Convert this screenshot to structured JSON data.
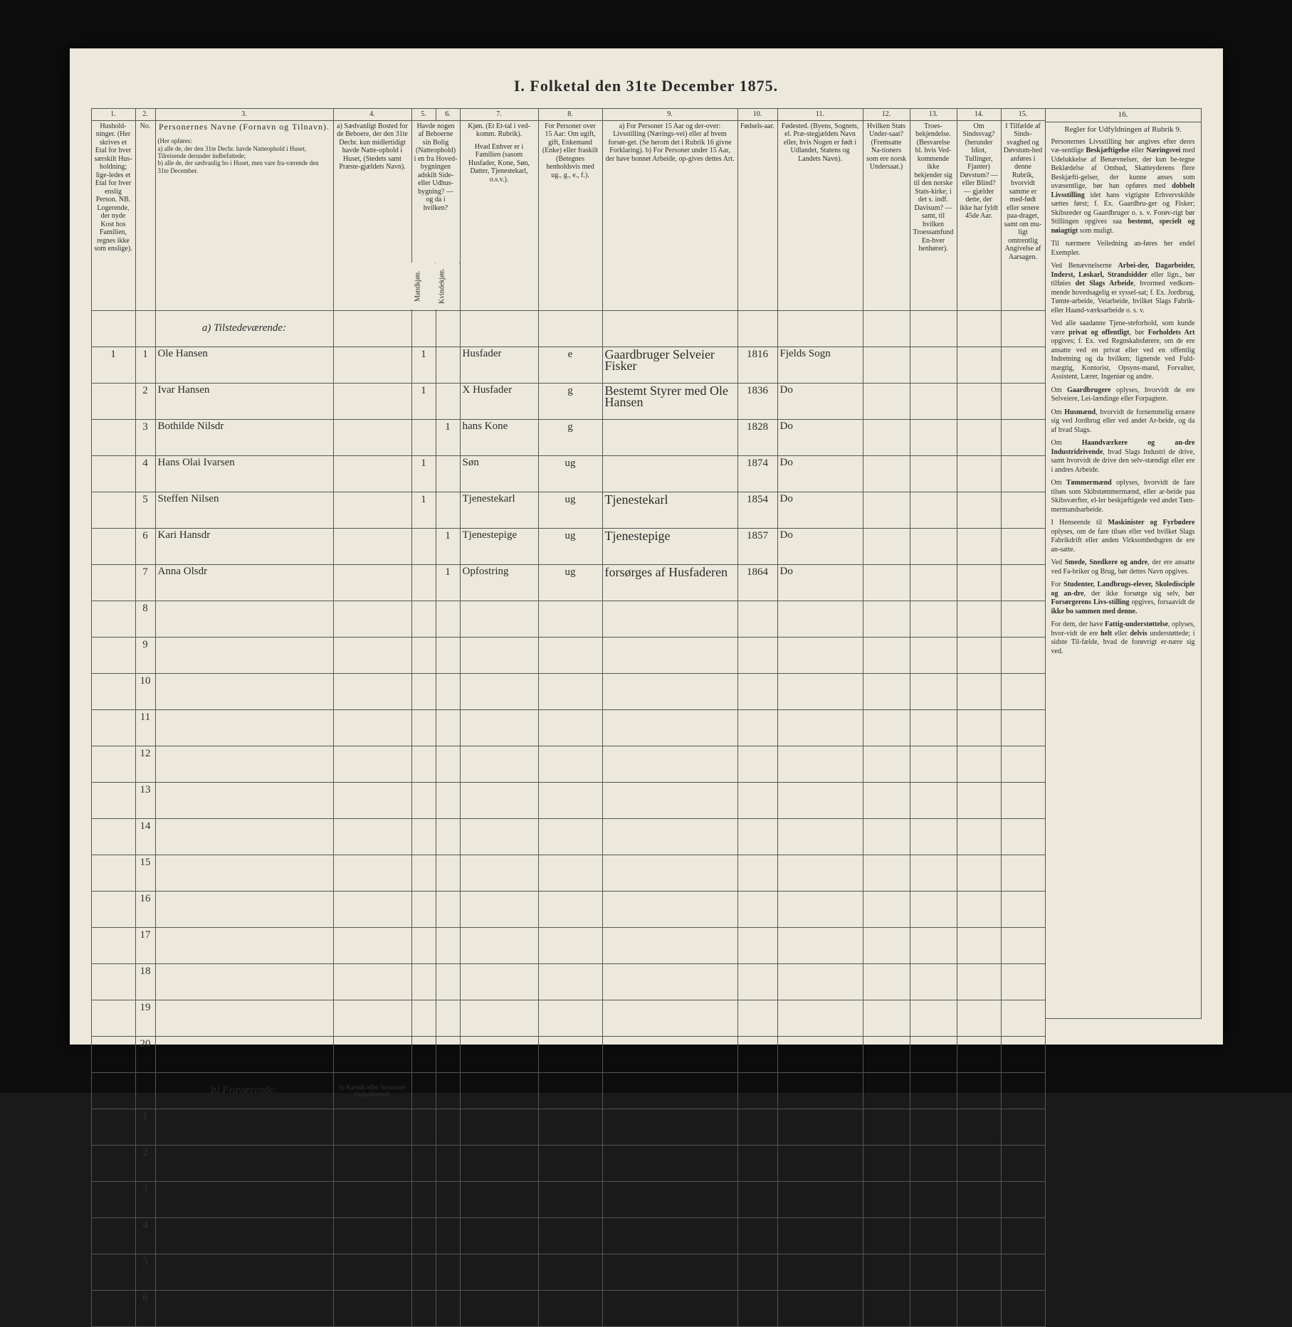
{
  "title": "I.  Folketal  den 31te December 1875.",
  "columns": {
    "nums": [
      "1.",
      "2.",
      "3.",
      "4.",
      "5.",
      "6.",
      "7.",
      "8.",
      "9.",
      "10.",
      "11.",
      "12.",
      "13.",
      "14.",
      "15.",
      "16."
    ],
    "c1": "Hushold-\nninger.\n(Her skrives et Etal for hver særskilt Hus-holdning; lige-ledes et Etal for hver enslig Person.\nNB. Logerende, der nyde Kost hos Familien, regnes ikke som enslige).",
    "c2": "No.",
    "c3_title": "Personernes Navne (Fornavn og Tilnavn).",
    "c3_body": "(Her opføres:\na) alle de, der den 31te Decbr. havde Natteophold i Huset, Tilreisende derunder indbefattede;\nb) alle de, der sædvanlig bo i Huset, men vare fra-værende den 31te December.",
    "c4": "a) Sædvanligt Bosted for de Beboere, der den 31te Decbr. kun midlertidigt havde Natte-ophold i Huset, (Stedets samt Præste-gjældets Navn).",
    "c56": "Havde nogen af Beboerne sin Bolig (Natteophold) i en fra Hoved-bygningen adskilt Side-eller Udhus-bygning? — og da i hvilken?",
    "c5": "Mandkjøn.",
    "c6": "Kvindekjøn.",
    "c7_title": "Kjøn.\n(Et Et-tal i ved-komm. Rubrik).",
    "c7": "Hvad Enhver er i Familien\n(sasom Husfader, Kone, Søn, Datter, Tjenestekarl, o.s.v.).",
    "c8": "For Personer over 15 Aar:\nOm ugift, gift, Enkemand (Enke) eller fraskilt (Betegnes henholdsvis med ug., g., e., f.).",
    "c9": "a) For Personer 15 Aar og der-over: Livsstilling (Nærings-vei) eller af hvem forsør-get. (Se herom det i Rubrik 16 givne Forklaring).\nb) For Personer under 15 Aar, der have bonnet Arbeide, op-gives dettes Art.",
    "c10": "Fødsels-aar.",
    "c11": "Fødested.\n(Byens, Sognets, el. Præ-stegjældets Navn eller, hvis Nogen er født i Udlandet, Statens og Landets Navn).",
    "c12": "Hvilken Stats Under-saat?\n(Fremsatte Na-tioners som ere norsk Undersaat.)",
    "c13": "Troes-bekjendelse.\n(Besvarelse bl. hvis Ved-kommende ikke bekjender sig til den norske Stats-kirke; i det s. indf. Davisum? — samt, til hvilken Troessamfund En-hver henhører).",
    "c14": "Om Sindssvag? (herunder Idiot, Tullinger, Fjanter) Døvstum? — eller Blind? — gjælder dette, der ikke har fyldt 45de Aar.",
    "c15": "I Tilfælde af Sinds-svaghed og Døvstum-hed anføres i denne Rubrik, hvorvidt samme er med-født eller senere paa-draget, samt om mu-ligt omtrentlig Angivelse af Aarsagen.",
    "c16_title": "Regler for Udfyldningen af Rubrik 9."
  },
  "sections": {
    "present": "a) Tilstedeværende:",
    "absent": "b) Fraværende:",
    "absent_c4": "b) Kjendt eller formodet Opholdssted."
  },
  "rows": [
    {
      "n": "1",
      "hh": "1",
      "name": "Ole Hansen",
      "c5": "1",
      "c6": "",
      "rel": "Husfader",
      "ms": "e",
      "occ": "Gaardbruger\nSelveier Fisker",
      "yr": "1816",
      "bp": "Fjelds Sogn"
    },
    {
      "n": "2",
      "hh": "",
      "name": "Ivar Hansen",
      "c5": "1",
      "c6": "",
      "rel": "X Husfader",
      "ms": "g",
      "occ": "Bestemt Styrer med Ole Hansen",
      "yr": "1836",
      "bp": "Do"
    },
    {
      "n": "3",
      "hh": "",
      "name": "Bothilde Nilsdr",
      "c5": "",
      "c6": "1",
      "rel": "hans Kone",
      "ms": "g",
      "occ": "",
      "yr": "1828",
      "bp": "Do"
    },
    {
      "n": "4",
      "hh": "",
      "name": "Hans Olai Ivarsen",
      "c5": "1",
      "c6": "",
      "rel": "Søn",
      "ms": "ug",
      "occ": "",
      "yr": "1874",
      "bp": "Do"
    },
    {
      "n": "5",
      "hh": "",
      "name": "Steffen Nilsen",
      "c5": "1",
      "c6": "",
      "rel": "Tjenestekarl",
      "ms": "ug",
      "occ": "Tjenestekarl",
      "yr": "1854",
      "bp": "Do"
    },
    {
      "n": "6",
      "hh": "",
      "name": "Kari Hansdr",
      "c5": "",
      "c6": "1",
      "rel": "Tjenestepige",
      "ms": "ug",
      "occ": "Tjenestepige",
      "yr": "1857",
      "bp": "Do"
    },
    {
      "n": "7",
      "hh": "",
      "name": "Anna Olsdr",
      "c5": "",
      "c6": "1",
      "rel": "Opfostring",
      "ms": "ug",
      "occ": "forsørges af Husfaderen",
      "yr": "1864",
      "bp": "Do"
    }
  ],
  "blank_present": [
    "8",
    "9",
    "10",
    "11",
    "12",
    "13",
    "14",
    "15",
    "16",
    "17",
    "18",
    "19",
    "20"
  ],
  "blank_absent": [
    "1",
    "2",
    "3",
    "4",
    "5",
    "6"
  ],
  "rules": [
    "Personernes Livsstilling bør angives efter deres væ-sentlige <b>Beskjæftigelse</b> eller <b>Næringsvei</b> med Udelukkelse af Benævnelser, der kun be-tegne Beklædelse af Ombud, Skatteyderens flere Beskjæfti-gelser, der kunne anses som uvæsentlige, bør han opføres med <b>dobbelt Livsstilling</b> idet hans vigtigste Erhvervskilde sættes først; f. Ex. Gaardbru-ger og Fisker; Skibsreder og Gaardbruger o. s. v. Forøv-rigt bør Stillingen opgives saa <b>bestemt, specielt og nøiagtigt</b> som muligt.",
    "Til nærmere Veiledning an-føres her endel Exempler.",
    "Ved Benævnelserne <b>Arbei-der, Dagarbeider, Inderst, Løskarl, Strandsidder</b> eller lign., bør tilføies <b>det Slags Arbeide</b>, hvormed vedkom-mende hovedsagelig er syssel-sat; f. Ex. Jordbrug, Tømte-arbeide, Veiarbeide, hvilket Slags Fabrik- eller Haand-værksarbeide o. s. v.",
    "Ved alle saadanne Tjene-steforhold, som kunde være <b>privat og offentligt</b>, bør <b>Forholdets Art</b> opgives; f. Ex. ved Regnskabsførere, om de ere ansatte ved en privat eller ved en offentlig Indretning og da hvilken; lignende ved Fuld-mægtig, Kontorist, Opsyns-mand, Forvalter, Assistent, Lærer, Ingeniør og andre.",
    "Om <b>Gaardbrugere</b> oplyses, hvorvidt de ere Selveiere, Lei-lændinge eller Forpagtere.",
    "Om <b>Husmænd</b>, hvorvidt de fornemmelig ernære sig ved Jordbrug eller ved andet Ar-beide, og da af hvad Slags.",
    "Om <b>Haandværkere og an-dre Industridrivende</b>, hvad Slags Industri de drive, samt hvorvidt de drive den selv-stændigt eller ere i andres Arbeide.",
    "Om <b>Tømmermænd</b> oplyses, hvorvidt de fare tilsøs som Skibstømmermænd, eller ar-beide paa Skibsværfter, el-ler beskjæftigede ved andet Tøm-mermandsarbeide.",
    "I Henseende til <b>Maskinister og Fyrbødere</b> oplyses, om de fare tilsøs eller ved hvilket Slags Fabrikdrift eller anden Virksomhedsgren de ere an-satte.",
    "Ved <b>Smede, Snedkere og andre</b>, der ere ansatte ved Fa-briker og Brug, bør dettes Navn opgives.",
    "For <b>Studenter, Landbrugs-elever, Skoledisciple og an-dre</b>, der ikke forsørge sig selv, bør <b>Forsørgerens Livs-stilling</b> opgives, forsaavidt de <b>ikke bo sammen med denne.</b>",
    "For dem, der have <b>Fattig-understøttelse</b>, oplyses, hvor-vidt de ere <b>helt</b> eller <b>delvis</b> understøttede; i sidste Til-fælde, hvad de forøvrigt er-nære sig ved."
  ]
}
